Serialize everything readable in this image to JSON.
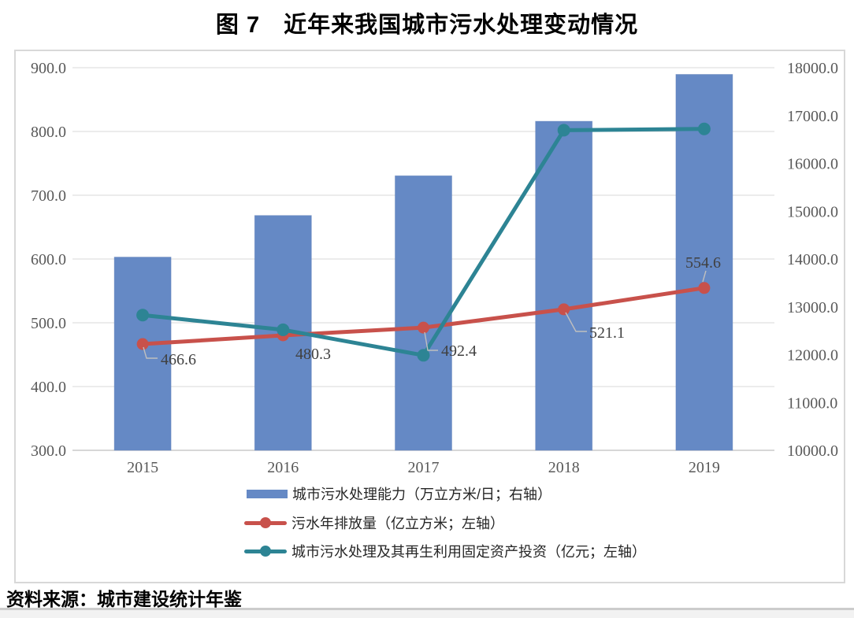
{
  "page": {
    "title": "图 7　近年来我国城市污水处理变动情况",
    "source_note": "资料来源：城市建设统计年鉴"
  },
  "colors": {
    "bar_blue": "#6589C5",
    "line_red": "#C8514B",
    "line_teal": "#2D8494",
    "grid": "#D9D9D9",
    "axis_line": "#BFBFBF",
    "axis_text": "#595959",
    "data_label_text": "#404040",
    "leader_line": "#BFBFBF",
    "frame_border": "#D8D8D8"
  },
  "chart_data": {
    "type": "combo bar + line (dual axis)",
    "title": "图 7　近年来我国城市污水处理变动情况",
    "categories": [
      "2015",
      "2016",
      "2017",
      "2018",
      "2019"
    ],
    "series": [
      {
        "name": "城市污水处理能力（万立方米/日；右轴）",
        "type": "bar",
        "axis": "right",
        "color": "#6589C5",
        "values": [
          14040,
          14910,
          15740,
          16880,
          17860
        ]
      },
      {
        "name": "污水年排放量（亿立方米；左轴）",
        "type": "line",
        "axis": "left",
        "color": "#C8514B",
        "values": [
          466.6,
          480.3,
          492.4,
          521.1,
          554.6
        ],
        "data_labels": [
          "466.6",
          "480.3",
          "492.4",
          "521.1",
          "554.6"
        ]
      },
      {
        "name": "城市污水处理及其再生利用固定资产投资（亿元；左轴）",
        "type": "line",
        "axis": "left",
        "color": "#2D8494",
        "values": [
          512,
          489,
          449,
          802,
          804
        ]
      }
    ],
    "left_axis": {
      "min": 300,
      "max": 900,
      "step": 100,
      "tick_labels": [
        "900.0",
        "800.0",
        "700.0",
        "600.0",
        "500.0",
        "400.0",
        "300.0"
      ]
    },
    "right_axis": {
      "min": 10000,
      "max": 18000,
      "step": 1000,
      "tick_labels": [
        "18000.0",
        "17000.0",
        "16000.0",
        "15000.0",
        "14000.0",
        "13000.0",
        "12000.0",
        "11000.0",
        "10000.0"
      ]
    },
    "x_axis": {
      "labels": [
        "2015",
        "2016",
        "2017",
        "2018",
        "2019"
      ]
    },
    "grid": true,
    "legend_position": "bottom-inside"
  }
}
